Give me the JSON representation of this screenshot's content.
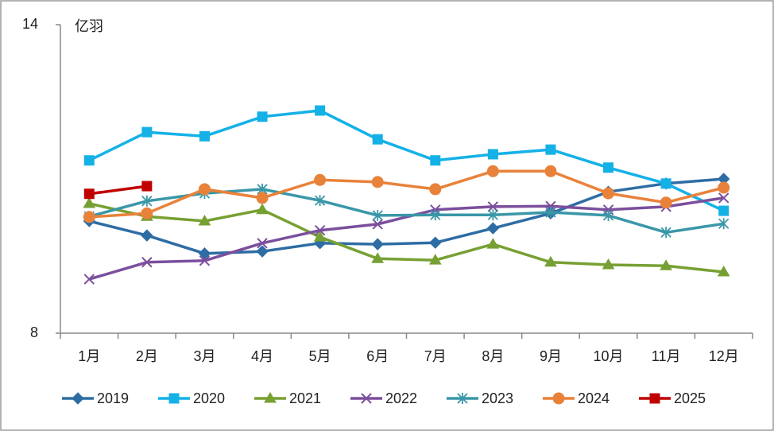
{
  "chart_data": {
    "type": "line",
    "y_label": "亿羽",
    "categories": [
      "1月",
      "2月",
      "3月",
      "4月",
      "5月",
      "6月",
      "7月",
      "8月",
      "9月",
      "10月",
      "11月",
      "12月"
    ],
    "ylim": [
      8,
      14
    ],
    "yticks": [
      8,
      14
    ],
    "grid": false,
    "legend": "bottom",
    "series": [
      {
        "name": "2019",
        "color": "#2e6da4",
        "marker": "diamond",
        "values": [
          10.18,
          9.9,
          9.55,
          9.59,
          9.75,
          9.73,
          9.76,
          10.04,
          10.33,
          10.75,
          10.91,
          11.0
        ]
      },
      {
        "name": "2020",
        "color": "#14b1e7",
        "marker": "square",
        "values": [
          11.36,
          11.91,
          11.83,
          12.21,
          12.33,
          11.77,
          11.36,
          11.48,
          11.57,
          11.22,
          10.91,
          10.38
        ]
      },
      {
        "name": "2021",
        "color": "#77a033",
        "marker": "triangle",
        "values": [
          10.52,
          10.27,
          10.18,
          10.4,
          9.87,
          9.45,
          9.42,
          9.73,
          9.38,
          9.33,
          9.31,
          9.19
        ]
      },
      {
        "name": "2022",
        "color": "#7b4f9d",
        "marker": "x",
        "values": [
          9.05,
          9.38,
          9.41,
          9.75,
          10.0,
          10.12,
          10.4,
          10.46,
          10.47,
          10.4,
          10.46,
          10.63
        ]
      },
      {
        "name": "2023",
        "color": "#3a97a8",
        "marker": "star",
        "values": [
          10.27,
          10.57,
          10.72,
          10.8,
          10.58,
          10.29,
          10.3,
          10.3,
          10.35,
          10.29,
          9.96,
          10.13
        ]
      },
      {
        "name": "2024",
        "color": "#e8823a",
        "marker": "circle",
        "values": [
          10.26,
          10.33,
          10.8,
          10.63,
          10.98,
          10.94,
          10.8,
          11.15,
          11.15,
          10.72,
          10.54,
          10.83
        ]
      },
      {
        "name": "2025",
        "color": "#c00000",
        "marker": "square",
        "values": [
          10.71,
          10.86,
          null,
          null,
          null,
          null,
          null,
          null,
          null,
          null,
          null,
          null
        ]
      }
    ]
  }
}
